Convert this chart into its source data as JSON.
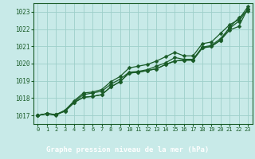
{
  "title": "Graphe pression niveau de la mer (hPa)",
  "xlabel_ticks": [
    "0",
    "1",
    "2",
    "3",
    "4",
    "5",
    "6",
    "7",
    "8",
    "9",
    "10",
    "11",
    "12",
    "13",
    "14",
    "15",
    "16",
    "17",
    "18",
    "19",
    "20",
    "21",
    "22",
    "23"
  ],
  "ylim": [
    1016.5,
    1023.5
  ],
  "xlim": [
    -0.5,
    23.5
  ],
  "yticks": [
    1017,
    1018,
    1019,
    1020,
    1021,
    1022,
    1023
  ],
  "bg_color": "#c8eae8",
  "bottom_bar_color": "#2d6b3a",
  "grid_color": "#9dcfca",
  "line_color": "#1a5c28",
  "tick_label_color": "#ffffff",
  "title_color": "#ffffff",
  "series": [
    [
      1017.0,
      1017.1,
      1017.0,
      1017.3,
      1017.8,
      1018.2,
      1018.3,
      1018.4,
      1018.8,
      1019.1,
      1019.5,
      1019.55,
      1019.65,
      1019.85,
      1020.05,
      1020.35,
      1020.25,
      1020.25,
      1020.95,
      1021.05,
      1021.45,
      1022.05,
      1022.45,
      1023.15
    ],
    [
      1017.0,
      1017.1,
      1017.05,
      1017.25,
      1017.75,
      1018.05,
      1018.1,
      1018.2,
      1018.65,
      1018.95,
      1019.45,
      1019.5,
      1019.6,
      1019.7,
      1019.95,
      1020.15,
      1020.2,
      1020.2,
      1020.9,
      1021.0,
      1021.35,
      1021.95,
      1022.15,
      1023.2
    ],
    [
      1017.0,
      1017.1,
      1017.05,
      1017.3,
      1017.85,
      1018.3,
      1018.35,
      1018.5,
      1018.95,
      1019.25,
      1019.75,
      1019.85,
      1019.95,
      1020.15,
      1020.4,
      1020.65,
      1020.45,
      1020.45,
      1021.15,
      1021.25,
      1021.75,
      1022.25,
      1022.55,
      1023.3
    ],
    [
      1017.0,
      1017.1,
      1017.05,
      1017.25,
      1017.75,
      1018.05,
      1018.1,
      1018.2,
      1018.65,
      1018.95,
      1019.45,
      1019.5,
      1019.6,
      1019.7,
      1019.95,
      1020.15,
      1020.2,
      1020.2,
      1020.9,
      1021.0,
      1021.35,
      1022.1,
      1022.65,
      1023.05
    ]
  ],
  "marker": "D",
  "marker_size": 2.5,
  "line_width": 0.9
}
